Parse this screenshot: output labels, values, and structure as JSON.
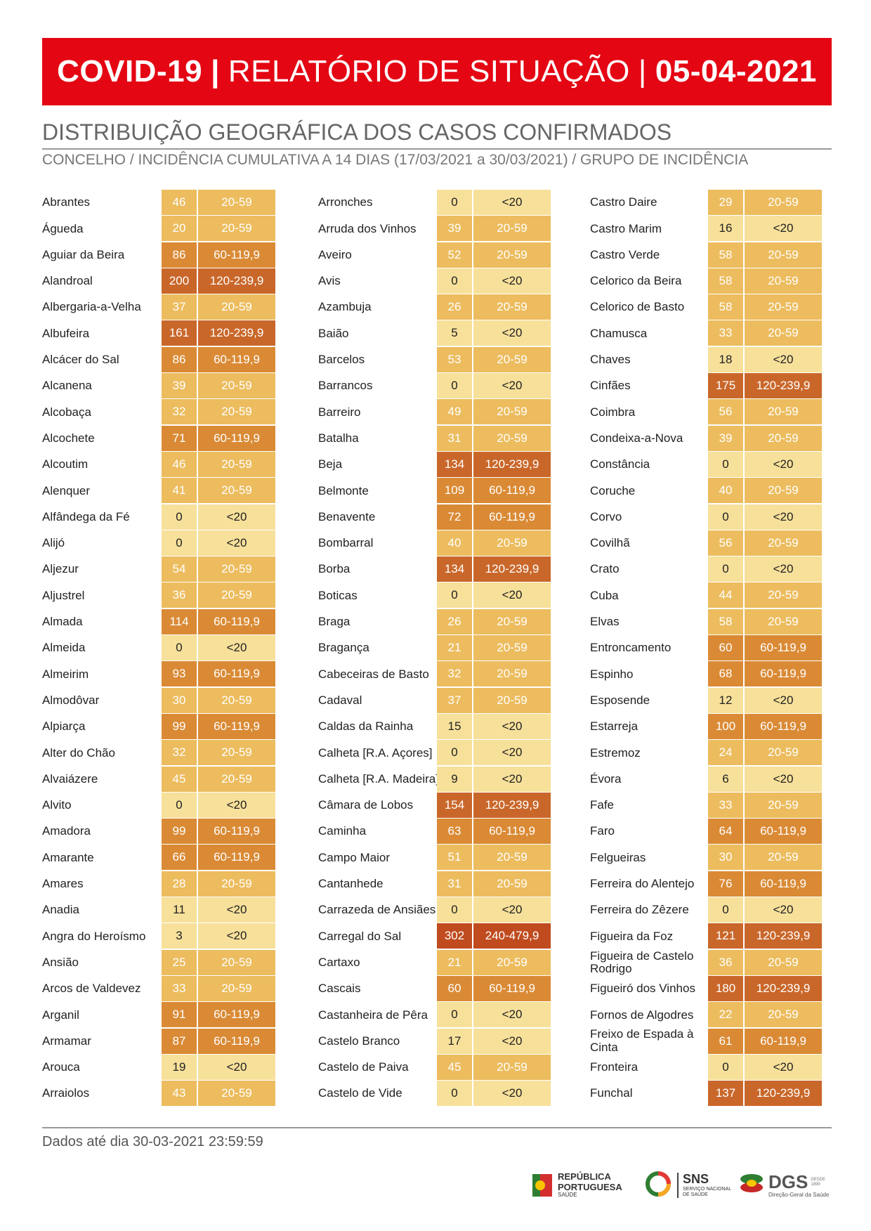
{
  "header": {
    "part1": "COVID-19",
    "part2": "RELATÓRIO DE SITUAÇÃO",
    "part3": "05-04-2021",
    "separator": "|"
  },
  "subtitle": "DISTRIBUIÇÃO GEOGRÁFICA DOS CASOS CONFIRMADOS",
  "subtitle2": "CONCELHO / INCIDÊNCIA CUMULATIVA A 14 DIAS (17/03/2021 a 30/03/2021) / GRUPO DE INCIDÊNCIA",
  "footer": "Dados até dia 30-03-2021 23:59:59",
  "logos": {
    "republica_line1": "REPÚBLICA",
    "republica_line2": "PORTUGUESA",
    "republica_line3": "SAÚDE",
    "sns_line1": "SNS",
    "sns_line2": "SERVIÇO NACIONAL",
    "sns_line3": "DE SAÚDE",
    "dgs_line1": "DGS",
    "dgs_line2": "Direção-Geral da Saúde",
    "dgs_since": "DESDE 1899"
  },
  "group_colors": {
    "<20": "#f7e09a",
    "20-59": "#ecbc5e",
    "60-119,9": "#da8a35",
    "120-239,9": "#c9672a",
    "240-479,9": "#bf4b1e"
  },
  "columns": [
    [
      [
        "Abrantes",
        "46",
        "20-59"
      ],
      [
        "Águeda",
        "20",
        "20-59"
      ],
      [
        "Aguiar da Beira",
        "86",
        "60-119,9"
      ],
      [
        "Alandroal",
        "200",
        "120-239,9"
      ],
      [
        "Albergaria-a-Velha",
        "37",
        "20-59"
      ],
      [
        "Albufeira",
        "161",
        "120-239,9"
      ],
      [
        "Alcácer do Sal",
        "86",
        "60-119,9"
      ],
      [
        "Alcanena",
        "39",
        "20-59"
      ],
      [
        "Alcobaça",
        "32",
        "20-59"
      ],
      [
        "Alcochete",
        "71",
        "60-119,9"
      ],
      [
        "Alcoutim",
        "46",
        "20-59"
      ],
      [
        "Alenquer",
        "41",
        "20-59"
      ],
      [
        "Alfândega da Fé",
        "0",
        "<20"
      ],
      [
        "Alijó",
        "0",
        "<20"
      ],
      [
        "Aljezur",
        "54",
        "20-59"
      ],
      [
        "Aljustrel",
        "36",
        "20-59"
      ],
      [
        "Almada",
        "114",
        "60-119,9"
      ],
      [
        "Almeida",
        "0",
        "<20"
      ],
      [
        "Almeirim",
        "93",
        "60-119,9"
      ],
      [
        "Almodôvar",
        "30",
        "20-59"
      ],
      [
        "Alpiarça",
        "99",
        "60-119,9"
      ],
      [
        "Alter do Chão",
        "32",
        "20-59"
      ],
      [
        "Alvaiázere",
        "45",
        "20-59"
      ],
      [
        "Alvito",
        "0",
        "<20"
      ],
      [
        "Amadora",
        "99",
        "60-119,9"
      ],
      [
        "Amarante",
        "66",
        "60-119,9"
      ],
      [
        "Amares",
        "28",
        "20-59"
      ],
      [
        "Anadia",
        "11",
        "<20"
      ],
      [
        "Angra do Heroísmo",
        "3",
        "<20"
      ],
      [
        "Ansião",
        "25",
        "20-59"
      ],
      [
        "Arcos de Valdevez",
        "33",
        "20-59"
      ],
      [
        "Arganil",
        "91",
        "60-119,9"
      ],
      [
        "Armamar",
        "87",
        "60-119,9"
      ],
      [
        "Arouca",
        "19",
        "<20"
      ],
      [
        "Arraiolos",
        "43",
        "20-59"
      ]
    ],
    [
      [
        "Arronches",
        "0",
        "<20"
      ],
      [
        "Arruda dos Vinhos",
        "39",
        "20-59"
      ],
      [
        "Aveiro",
        "52",
        "20-59"
      ],
      [
        "Avis",
        "0",
        "<20"
      ],
      [
        "Azambuja",
        "26",
        "20-59"
      ],
      [
        "Baião",
        "5",
        "<20"
      ],
      [
        "Barcelos",
        "53",
        "20-59"
      ],
      [
        "Barrancos",
        "0",
        "<20"
      ],
      [
        "Barreiro",
        "49",
        "20-59"
      ],
      [
        "Batalha",
        "31",
        "20-59"
      ],
      [
        "Beja",
        "134",
        "120-239,9"
      ],
      [
        "Belmonte",
        "109",
        "60-119,9"
      ],
      [
        "Benavente",
        "72",
        "60-119,9"
      ],
      [
        "Bombarral",
        "40",
        "20-59"
      ],
      [
        "Borba",
        "134",
        "120-239,9"
      ],
      [
        "Boticas",
        "0",
        "<20"
      ],
      [
        "Braga",
        "26",
        "20-59"
      ],
      [
        "Bragança",
        "21",
        "20-59"
      ],
      [
        "Cabeceiras de Basto",
        "32",
        "20-59"
      ],
      [
        "Cadaval",
        "37",
        "20-59"
      ],
      [
        "Caldas da Rainha",
        "15",
        "<20"
      ],
      [
        "Calheta [R.A. Açores]",
        "0",
        "<20"
      ],
      [
        "Calheta [R.A. Madeira]",
        "9",
        "<20"
      ],
      [
        "Câmara de Lobos",
        "154",
        "120-239,9"
      ],
      [
        "Caminha",
        "63",
        "60-119,9"
      ],
      [
        "Campo Maior",
        "51",
        "20-59"
      ],
      [
        "Cantanhede",
        "31",
        "20-59"
      ],
      [
        "Carrazeda de Ansiães",
        "0",
        "<20"
      ],
      [
        "Carregal do Sal",
        "302",
        "240-479,9"
      ],
      [
        "Cartaxo",
        "21",
        "20-59"
      ],
      [
        "Cascais",
        "60",
        "60-119,9"
      ],
      [
        "Castanheira de Pêra",
        "0",
        "<20"
      ],
      [
        "Castelo Branco",
        "17",
        "<20"
      ],
      [
        "Castelo de Paiva",
        "45",
        "20-59"
      ],
      [
        "Castelo de Vide",
        "0",
        "<20"
      ]
    ],
    [
      [
        "Castro Daire",
        "29",
        "20-59"
      ],
      [
        "Castro Marim",
        "16",
        "<20"
      ],
      [
        "Castro Verde",
        "58",
        "20-59"
      ],
      [
        "Celorico da Beira",
        "58",
        "20-59"
      ],
      [
        "Celorico de Basto",
        "58",
        "20-59"
      ],
      [
        "Chamusca",
        "33",
        "20-59"
      ],
      [
        "Chaves",
        "18",
        "<20"
      ],
      [
        "Cinfães",
        "175",
        "120-239,9"
      ],
      [
        "Coimbra",
        "56",
        "20-59"
      ],
      [
        "Condeixa-a-Nova",
        "39",
        "20-59"
      ],
      [
        "Constância",
        "0",
        "<20"
      ],
      [
        "Coruche",
        "40",
        "20-59"
      ],
      [
        "Corvo",
        "0",
        "<20"
      ],
      [
        "Covilhã",
        "56",
        "20-59"
      ],
      [
        "Crato",
        "0",
        "<20"
      ],
      [
        "Cuba",
        "44",
        "20-59"
      ],
      [
        "Elvas",
        "58",
        "20-59"
      ],
      [
        "Entroncamento",
        "60",
        "60-119,9"
      ],
      [
        "Espinho",
        "68",
        "60-119,9"
      ],
      [
        "Esposende",
        "12",
        "<20"
      ],
      [
        "Estarreja",
        "100",
        "60-119,9"
      ],
      [
        "Estremoz",
        "24",
        "20-59"
      ],
      [
        "Évora",
        "6",
        "<20"
      ],
      [
        "Fafe",
        "33",
        "20-59"
      ],
      [
        "Faro",
        "64",
        "60-119,9"
      ],
      [
        "Felgueiras",
        "30",
        "20-59"
      ],
      [
        "Ferreira do Alentejo",
        "76",
        "60-119,9"
      ],
      [
        "Ferreira do Zêzere",
        "0",
        "<20"
      ],
      [
        "Figueira da Foz",
        "121",
        "120-239,9"
      ],
      [
        "Figueira de Castelo Rodrigo",
        "36",
        "20-59"
      ],
      [
        "Figueiró dos Vinhos",
        "180",
        "120-239,9"
      ],
      [
        "Fornos de Algodres",
        "22",
        "20-59"
      ],
      [
        "Freixo de Espada à Cinta",
        "61",
        "60-119,9"
      ],
      [
        "Fronteira",
        "0",
        "<20"
      ],
      [
        "Funchal",
        "137",
        "120-239,9"
      ]
    ]
  ]
}
